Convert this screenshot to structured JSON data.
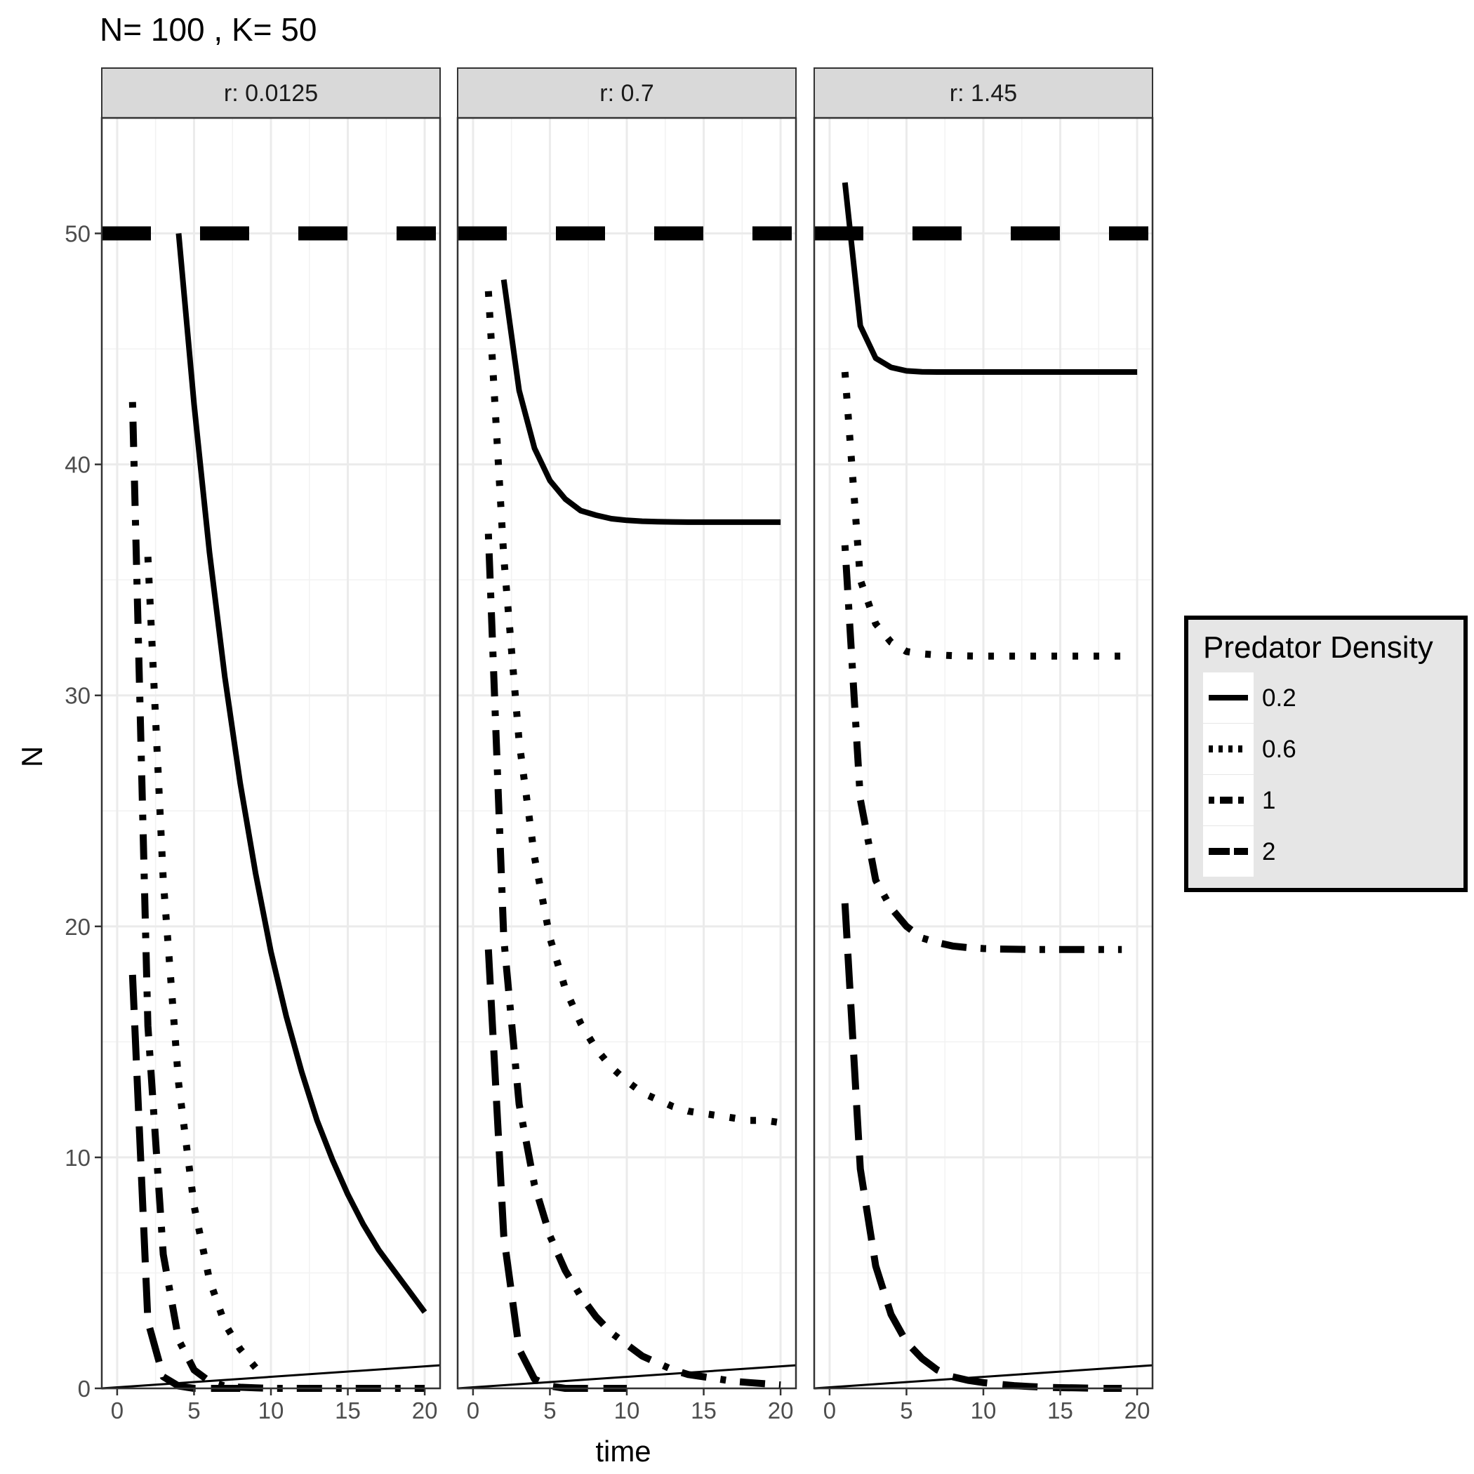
{
  "chart_data": {
    "type": "line",
    "title": "N= 100 , K= 50",
    "xlabel": "time",
    "ylabel": "N",
    "xlim": [
      -1,
      21
    ],
    "ylim": [
      0,
      55
    ],
    "x_ticks": [
      0,
      5,
      10,
      15,
      20
    ],
    "y_ticks": [
      0,
      10,
      20,
      30,
      40,
      50
    ],
    "grid": true,
    "reference_lines": [
      {
        "kind": "carrying-capacity",
        "y": 50,
        "style": "long-dash"
      },
      {
        "kind": "reference-line",
        "x_from": -1,
        "y_from": 0,
        "x_to": 21,
        "y_to": 1,
        "style": "thin-solid"
      }
    ],
    "legend": {
      "title": "Predator Density",
      "position": "right",
      "entries": [
        {
          "label": "0.2",
          "style": "solid"
        },
        {
          "label": "0.6",
          "style": "dotted"
        },
        {
          "label": "1",
          "style": "dotdash"
        },
        {
          "label": "2",
          "style": "longdash"
        }
      ]
    },
    "panels": [
      {
        "strip": "r: 0.0125",
        "series": [
          {
            "legend_label": "0.2",
            "style": "solid",
            "x": [
              4,
              5,
              6,
              7,
              8,
              9,
              10,
              11,
              12,
              13,
              14,
              15,
              16,
              17,
              18,
              19,
              20
            ],
            "y": [
              50,
              42.6,
              36.2,
              30.8,
              26.2,
              22.3,
              18.9,
              16.1,
              13.7,
              11.6,
              9.9,
              8.4,
              7.1,
              6.0,
              5.1,
              4.2,
              3.3
            ]
          },
          {
            "legend_label": "0.6",
            "style": "dotted",
            "x": [
              2,
              3,
              4,
              5,
              6,
              7,
              8,
              9
            ],
            "y": [
              36,
              22,
              13.2,
              7.9,
              4.7,
              2.8,
              1.7,
              0.9
            ]
          },
          {
            "legend_label": "1",
            "style": "dotdash",
            "x": [
              1,
              2,
              3,
              4,
              5,
              6,
              7,
              8,
              9,
              10,
              11,
              12,
              13,
              14,
              15,
              16,
              17,
              18,
              19,
              20
            ],
            "y": [
              42.7,
              15.7,
              5.8,
              2.1,
              0.8,
              0.3,
              0.1,
              0.05,
              0.02,
              0,
              0,
              0,
              0,
              0,
              0,
              0,
              0,
              0,
              0,
              0
            ]
          },
          {
            "legend_label": "2",
            "style": "longdash",
            "x": [
              1,
              2,
              3,
              4,
              5,
              6,
              7,
              8
            ],
            "y": [
              17.9,
              2.9,
              0.5,
              0.1,
              0,
              0,
              0,
              0
            ]
          }
        ]
      },
      {
        "strip": "r: 0.7",
        "series": [
          {
            "legend_label": "0.2",
            "style": "solid",
            "x": [
              2,
              3,
              4,
              5,
              6,
              7,
              8,
              9,
              10,
              11,
              12,
              13,
              14,
              15,
              16,
              17,
              18,
              19,
              20
            ],
            "y": [
              48,
              43.2,
              40.7,
              39.3,
              38.5,
              38.0,
              37.8,
              37.65,
              37.58,
              37.54,
              37.52,
              37.51,
              37.5,
              37.5,
              37.5,
              37.5,
              37.5,
              37.5,
              37.5
            ]
          },
          {
            "legend_label": "0.6",
            "style": "dotted",
            "x": [
              1,
              2,
              3,
              4,
              5,
              6,
              7,
              8,
              9,
              10,
              11,
              12,
              13,
              14,
              15,
              16,
              17,
              18,
              19,
              20
            ],
            "y": [
              47.5,
              36,
              28,
              23,
              19.5,
              17.3,
              15.8,
              14.7,
              13.9,
              13.3,
              12.8,
              12.5,
              12.2,
              12.0,
              11.9,
              11.8,
              11.7,
              11.6,
              11.6,
              11.5
            ]
          },
          {
            "legend_label": "1",
            "style": "dotdash",
            "x": [
              1,
              2,
              3,
              4,
              5,
              6,
              7,
              8,
              9,
              10,
              11,
              12,
              13,
              14,
              15,
              16,
              17,
              18,
              19,
              20
            ],
            "y": [
              37,
              19.5,
              12.3,
              8.8,
              6.6,
              5.1,
              4.0,
              3.1,
              2.4,
              1.9,
              1.4,
              1.1,
              0.8,
              0.6,
              0.5,
              0.4,
              0.3,
              0.25,
              0.2,
              0.15
            ]
          },
          {
            "legend_label": "2",
            "style": "longdash",
            "x": [
              1,
              2,
              3,
              4,
              5,
              6,
              7,
              8,
              9,
              10
            ],
            "y": [
              19,
              6.6,
              1.7,
              0.4,
              0.1,
              0,
              0,
              0,
              0,
              0
            ]
          }
        ]
      },
      {
        "strip": "r: 1.45",
        "series": [
          {
            "legend_label": "0.2",
            "style": "solid",
            "x": [
              1,
              2,
              3,
              4,
              5,
              6,
              7,
              8,
              9,
              10,
              11,
              12,
              13,
              14,
              15,
              16,
              17,
              18,
              19,
              20
            ],
            "y": [
              52.2,
              46,
              44.6,
              44.2,
              44.05,
              44.01,
              44,
              44,
              44,
              44,
              44,
              44,
              44,
              44,
              44,
              44,
              44,
              44,
              44,
              44
            ]
          },
          {
            "legend_label": "0.6",
            "style": "dotted",
            "x": [
              1,
              2,
              3,
              4,
              5,
              6,
              7,
              8,
              9,
              10,
              11,
              12,
              13,
              14,
              15,
              16,
              17,
              18,
              19
            ],
            "y": [
              44,
              35,
              33.1,
              32.3,
              31.9,
              31.8,
              31.75,
              31.72,
              31.71,
              31.7,
              31.7,
              31.7,
              31.7,
              31.7,
              31.7,
              31.7,
              31.7,
              31.7,
              31.7
            ]
          },
          {
            "legend_label": "1",
            "style": "dotdash",
            "x": [
              1,
              2,
              3,
              4,
              5,
              6,
              7,
              8,
              9,
              10,
              11,
              12,
              13,
              14,
              15,
              16,
              17,
              18,
              19
            ],
            "y": [
              36.5,
              25.5,
              22,
              20.8,
              20.0,
              19.5,
              19.3,
              19.15,
              19.08,
              19.04,
              19.02,
              19.01,
              19,
              19,
              19,
              19,
              19,
              19,
              19
            ]
          },
          {
            "legend_label": "2",
            "style": "longdash",
            "x": [
              1,
              2,
              3,
              4,
              5,
              6,
              7,
              8,
              9,
              10,
              11,
              12,
              13,
              14,
              15,
              16,
              17,
              18,
              19
            ],
            "y": [
              21,
              9.5,
              5.3,
              3.2,
              2.0,
              1.3,
              0.8,
              0.5,
              0.35,
              0.25,
              0.18,
              0.12,
              0.08,
              0.05,
              0.03,
              0.02,
              0.01,
              0,
              0
            ]
          }
        ]
      }
    ]
  }
}
